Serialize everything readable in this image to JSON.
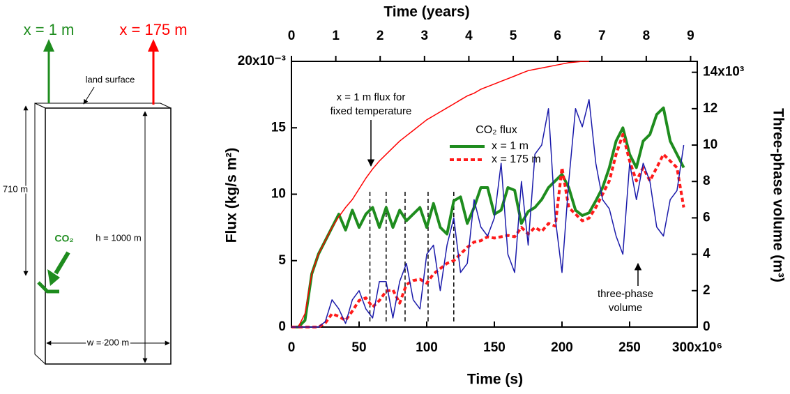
{
  "diagram": {
    "left_label": "x = 1 m",
    "right_label": "x = 175 m",
    "surface_label": "land surface",
    "depth_label": "710 m",
    "injection_label": "CO₂",
    "height_label": "h = 1000 m",
    "width_label": "w = 200 m"
  },
  "chart_data": {
    "type": "line",
    "xlabel": "Time (s)",
    "ylabel": "Flux (kg/s m²)",
    "y2label": "Three-phase volume (m³)",
    "x2label": "Time (years)",
    "xlim": [
      0,
      300
    ],
    "xticks": [
      0,
      50,
      100,
      150,
      200,
      250,
      {
        "value": 300,
        "label": "300x10⁶"
      }
    ],
    "ylim": [
      0,
      20
    ],
    "yticks": [
      0,
      5,
      10,
      15,
      {
        "value": 20,
        "label": "20x10⁻³"
      }
    ],
    "y2lim": [
      0,
      14.6
    ],
    "y2ticks": [
      0,
      2,
      4,
      6,
      8,
      10,
      12,
      {
        "value": 14,
        "label": "14x10³"
      }
    ],
    "x2lim": [
      0,
      9.15
    ],
    "x2ticks": [
      0,
      1,
      2,
      3,
      4,
      5,
      6,
      7,
      8,
      9
    ],
    "legend_title": "CO₂ flux",
    "annotations": [
      {
        "lines": [
          "x = 1 m flux for",
          "fixed temperature"
        ]
      },
      {
        "lines": [
          "three-phase",
          "volume"
        ]
      }
    ],
    "vlines": [
      58,
      70,
      84,
      101,
      120
    ],
    "x": [
      0,
      5,
      10,
      15,
      20,
      25,
      30,
      35,
      40,
      45,
      50,
      55,
      60,
      65,
      70,
      75,
      80,
      85,
      90,
      95,
      100,
      105,
      110,
      115,
      120,
      125,
      130,
      135,
      140,
      145,
      150,
      155,
      160,
      165,
      170,
      175,
      180,
      185,
      190,
      195,
      200,
      205,
      210,
      215,
      220,
      225,
      230,
      235,
      240,
      245,
      250,
      255,
      260,
      265,
      270,
      275,
      280,
      285,
      290
    ],
    "series": [
      {
        "name": "x = 1 m",
        "color": "#1e8c1e",
        "linewidth": 4,
        "dashed": false,
        "values": [
          0,
          0,
          0.5,
          4,
          5.5,
          6.5,
          7.5,
          8.5,
          7.3,
          8.8,
          7.5,
          8.5,
          9,
          7.5,
          9,
          7.5,
          8.8,
          8,
          8.5,
          9,
          7.5,
          9.3,
          7.5,
          7,
          9.5,
          9.8,
          7.8,
          9,
          10.5,
          10.5,
          8.5,
          8.8,
          10.5,
          10.3,
          7.8,
          8.7,
          9,
          9.6,
          10.5,
          11,
          11.5,
          10.5,
          8.8,
          8.4,
          8.6,
          9.5,
          10.5,
          12,
          14,
          15,
          13,
          12,
          14,
          14.5,
          16,
          16.5,
          14,
          13,
          12
        ]
      },
      {
        "name": "x = 175 m",
        "color": "#ff1a1a",
        "linewidth": 4,
        "dashed": true,
        "values": [
          0,
          0,
          0,
          0,
          0,
          0.3,
          1,
          0.8,
          0.5,
          1.2,
          2,
          2.2,
          1.5,
          2,
          2.7,
          2.8,
          1.8,
          3.2,
          3.5,
          3.6,
          3.3,
          4,
          4.4,
          4.8,
          5,
          5.5,
          6,
          6.4,
          6.5,
          6.8,
          6.7,
          6.8,
          6.9,
          6.8,
          7.5,
          7,
          7.5,
          7.2,
          7.8,
          7.6,
          12,
          9,
          8.5,
          8,
          8.2,
          9,
          10,
          11,
          13,
          14.5,
          12.5,
          11,
          12,
          11,
          12,
          13,
          12.5,
          12,
          9
        ]
      },
      {
        "color": "#ff0000",
        "linewidth": 1.5,
        "dashed": false,
        "values": [
          0,
          0,
          1,
          4,
          5.5,
          6.5,
          7.5,
          8.3,
          9,
          9.6,
          10.4,
          11.2,
          11.9,
          12.5,
          13,
          13.5,
          14,
          14.4,
          14.8,
          15.2,
          15.6,
          15.9,
          16.2,
          16.5,
          16.8,
          17.1,
          17.4,
          17.6,
          17.9,
          18.1,
          18.3,
          18.5,
          18.7,
          18.9,
          19.1,
          19.3,
          19.4,
          19.5,
          19.6,
          19.7,
          19.8,
          19.9,
          19.95,
          20,
          20,
          null,
          null,
          null,
          null,
          null,
          null,
          null,
          null,
          null,
          null,
          null,
          null,
          null,
          null
        ]
      },
      {
        "color": "#1a1aaa",
        "linewidth": 1.5,
        "dashed": false,
        "axis": "y2",
        "values": [
          0,
          0,
          0,
          0,
          0,
          0.3,
          1.5,
          1,
          0.2,
          1.5,
          2,
          1,
          0.5,
          2.5,
          2.5,
          0.5,
          2.5,
          3.5,
          1.5,
          1,
          4,
          4.5,
          2,
          4.5,
          6,
          3,
          3.5,
          7,
          5.5,
          5,
          6,
          9,
          4,
          3,
          8,
          4.5,
          9.5,
          10,
          12,
          6,
          3,
          8,
          12,
          11,
          12.5,
          9,
          7,
          6.5,
          5,
          4,
          9,
          7,
          9,
          8,
          5.5,
          5,
          7,
          7.5,
          10
        ]
      }
    ]
  }
}
